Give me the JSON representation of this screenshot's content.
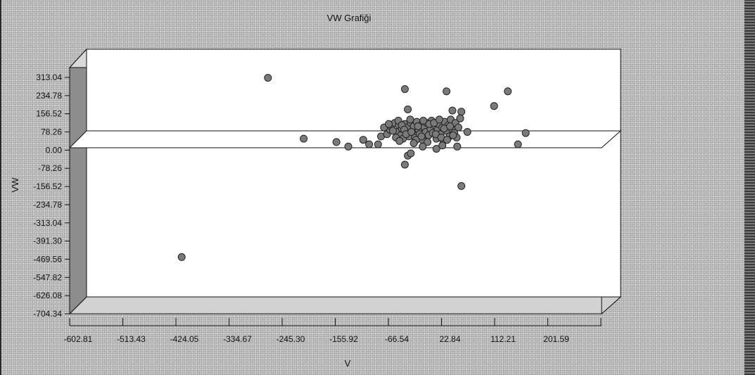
{
  "chart_data": {
    "type": "scatter",
    "title": "VW Grafiği",
    "xlabel": "V",
    "ylabel": "VW",
    "x_ticks": [
      "-602.81",
      "-513.43",
      "-424.05",
      "-334.67",
      "-245.30",
      "-155.92",
      "-66.54",
      "22.84",
      "112.21",
      "201.59"
    ],
    "y_ticks": [
      "313.04",
      "234.78",
      "156.52",
      "78.26",
      "0.00",
      "-78.26",
      "-156.52",
      "-234.78",
      "-313.04",
      "-391.30",
      "-469.56",
      "-547.82",
      "-626.08",
      "-704.34"
    ],
    "xlim": [
      -602.81,
      290.97
    ],
    "ylim": [
      -704.34,
      313.04
    ],
    "grid": false,
    "legend": "none",
    "marker_color": "#7a7a7a",
    "plot_background": "#ffffff",
    "points": [
      [
        -430,
        -565
      ],
      [
        -285,
        230
      ],
      [
        -225,
        -40
      ],
      [
        -170,
        -55
      ],
      [
        -150,
        -75
      ],
      [
        -55,
        180
      ],
      [
        -50,
        90
      ],
      [
        15,
        170
      ],
      [
        25,
        85
      ],
      [
        40,
        80
      ],
      [
        50,
        -10
      ],
      [
        95,
        105
      ],
      [
        118,
        170
      ],
      [
        135,
        -65
      ],
      [
        148,
        -15
      ],
      [
        40,
        -250
      ],
      [
        -55,
        -155
      ],
      [
        -50,
        -115
      ],
      [
        -45,
        -105
      ],
      [
        -125,
        -45
      ],
      [
        -115,
        -65
      ],
      [
        -100,
        -65
      ],
      [
        -95,
        -30
      ],
      [
        -85,
        -20
      ],
      [
        -80,
        0
      ],
      [
        -78,
        15
      ],
      [
        -72,
        30
      ],
      [
        -68,
        -10
      ],
      [
        -65,
        20
      ],
      [
        -62,
        -25
      ],
      [
        -60,
        5
      ],
      [
        -58,
        -40
      ],
      [
        -55,
        25
      ],
      [
        -52,
        -15
      ],
      [
        -50,
        10
      ],
      [
        -48,
        -30
      ],
      [
        -45,
        30
      ],
      [
        -42,
        -5
      ],
      [
        -40,
        15
      ],
      [
        -38,
        -35
      ],
      [
        -35,
        35
      ],
      [
        -32,
        0
      ],
      [
        -30,
        -20
      ],
      [
        -28,
        20
      ],
      [
        -25,
        -45
      ],
      [
        -22,
        10
      ],
      [
        -20,
        -10
      ],
      [
        -18,
        30
      ],
      [
        -15,
        -25
      ],
      [
        -12,
        5
      ],
      [
        -10,
        40
      ],
      [
        -8,
        -15
      ],
      [
        -5,
        20
      ],
      [
        -2,
        -40
      ],
      [
        0,
        0
      ],
      [
        2,
        25
      ],
      [
        5,
        -20
      ],
      [
        8,
        10
      ],
      [
        10,
        -50
      ],
      [
        12,
        35
      ],
      [
        15,
        -5
      ],
      [
        18,
        20
      ],
      [
        20,
        -30
      ],
      [
        22,
        45
      ],
      [
        25,
        0
      ],
      [
        28,
        -15
      ],
      [
        30,
        30
      ],
      [
        32,
        -35
      ],
      [
        35,
        10
      ],
      [
        38,
        50
      ],
      [
        -90,
        10
      ],
      [
        -82,
        25
      ],
      [
        -75,
        -5
      ],
      [
        -70,
        -35
      ],
      [
        -66,
        40
      ],
      [
        -64,
        -50
      ],
      [
        -60,
        20
      ],
      [
        -56,
        0
      ],
      [
        -53,
        -20
      ],
      [
        -46,
        45
      ],
      [
        -44,
        -10
      ],
      [
        -36,
        -45
      ],
      [
        -33,
        15
      ],
      [
        -27,
        -30
      ],
      [
        -24,
        40
      ],
      [
        -17,
        -55
      ],
      [
        -14,
        25
      ],
      [
        -6,
        30
      ],
      [
        -3,
        -20
      ],
      [
        3,
        45
      ],
      [
        6,
        -35
      ],
      [
        11,
        5
      ],
      [
        16,
        -45
      ],
      [
        21,
        15
      ],
      [
        26,
        -25
      ],
      [
        -2,
        -85
      ],
      [
        -25,
        -75
      ],
      [
        33,
        -75
      ],
      [
        8,
        -70
      ],
      [
        -40,
        -60
      ]
    ]
  }
}
